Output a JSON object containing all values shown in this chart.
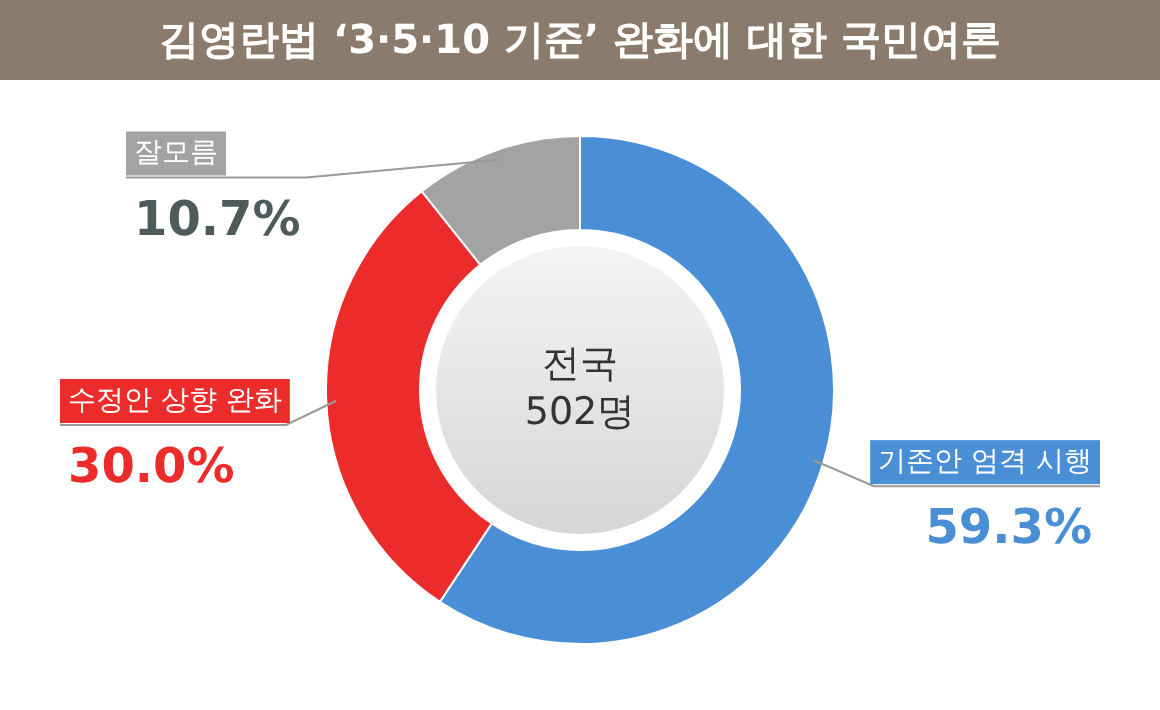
{
  "chart_data": {
    "type": "donut",
    "title": "김영란법 ‘3·5·10 기준’ 완화에 대한 국민여론",
    "categories": [
      "기존안 엄격 시행",
      "수정안 상향 완화",
      "잘모름"
    ],
    "values": [
      59.3,
      30.0,
      10.7
    ],
    "value_labels": [
      "59.3%",
      "30.0%",
      "10.7%"
    ],
    "colors": [
      "#4a8fd6",
      "#ec2b2b",
      "#a3a3a3"
    ],
    "annotations": [
      "전국",
      "502명"
    ]
  }
}
